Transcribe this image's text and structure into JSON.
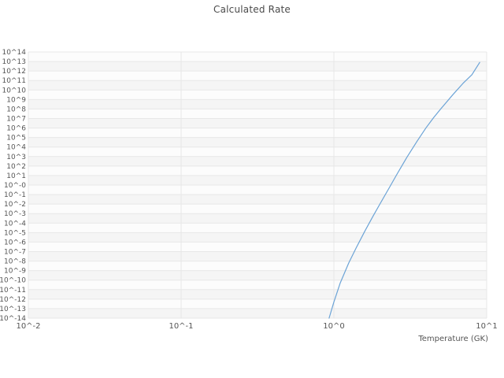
{
  "chart": {
    "title": "Calculated Rate",
    "xlabel": "Temperature (GK)",
    "line_color": "#6ba3d6",
    "grid_color": "#e7e7e7",
    "band_color_a": "#f5f5f5",
    "band_color_b": "#fcfcfc",
    "text_color": "#555555",
    "x_ticks": [
      {
        "label": "10^-2",
        "log": -2
      },
      {
        "label": "10^-1",
        "log": -1
      },
      {
        "label": "10^0",
        "log": 0
      },
      {
        "label": "10^1",
        "log": 1
      }
    ],
    "y_ticks": [
      {
        "label": "10^14",
        "log": 14
      },
      {
        "label": "10^13",
        "log": 13
      },
      {
        "label": "10^12",
        "log": 12
      },
      {
        "label": "10^11",
        "log": 11
      },
      {
        "label": "10^10",
        "log": 10
      },
      {
        "label": "10^9",
        "log": 9
      },
      {
        "label": "10^8",
        "log": 8
      },
      {
        "label": "10^7",
        "log": 7
      },
      {
        "label": "10^6",
        "log": 6
      },
      {
        "label": "10^5",
        "log": 5
      },
      {
        "label": "10^4",
        "log": 4
      },
      {
        "label": "10^3",
        "log": 3
      },
      {
        "label": "10^2",
        "log": 2
      },
      {
        "label": "10^1",
        "log": 1
      },
      {
        "label": "10^-0",
        "log": 0
      },
      {
        "label": "10^-1",
        "log": -1
      },
      {
        "label": "10^-2",
        "log": -2
      },
      {
        "label": "10^-3",
        "log": -3
      },
      {
        "label": "10^-4",
        "log": -4
      },
      {
        "label": "10^-5",
        "log": -5
      },
      {
        "label": "10^-6",
        "log": -6
      },
      {
        "label": "10^-7",
        "log": -7
      },
      {
        "label": "10^-8",
        "log": -8
      },
      {
        "label": "10^-9",
        "log": -9
      },
      {
        "label": "10^-10",
        "log": -10
      },
      {
        "label": "10^-11",
        "log": -11
      },
      {
        "label": "10^-12",
        "log": -12
      },
      {
        "label": "10^-13",
        "log": -13
      },
      {
        "label": "10^-14",
        "log": -14
      }
    ]
  },
  "chart_data": {
    "type": "line",
    "title": "Calculated Rate",
    "xlabel": "Temperature (GK)",
    "ylabel": "",
    "x_scale": "log",
    "y_scale": "log",
    "xlim_log10": [
      -2,
      1
    ],
    "ylim_log10": [
      -14,
      14
    ],
    "grid": true,
    "legend": "none",
    "series": [
      {
        "name": "Calculated Rate",
        "x_gk": [
          0.93,
          1.0,
          1.1,
          1.25,
          1.4,
          1.6,
          1.8,
          2.0,
          2.3,
          2.6,
          3.0,
          3.5,
          4.0,
          4.5,
          5.0,
          6.0,
          7.0,
          8.0,
          9.0
        ],
        "log10_y": [
          -14.0,
          -12.3,
          -10.3,
          -8.2,
          -6.6,
          -4.8,
          -3.3,
          -2.0,
          -0.3,
          1.2,
          2.9,
          4.6,
          6.0,
          7.1,
          8.0,
          9.5,
          10.7,
          11.6,
          12.9
        ]
      }
    ]
  }
}
